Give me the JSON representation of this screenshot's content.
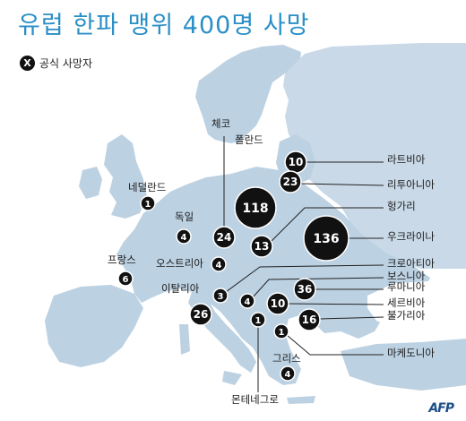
{
  "title": "유럽 한파 맹위 400명 사망",
  "legend": {
    "symbol": "X",
    "label": "공식 사망자"
  },
  "credit": "AFP",
  "colors": {
    "sea": "#ffffff",
    "land": "#bcd1e2",
    "land_light": "#d3e1ec",
    "marker": "#111111",
    "title": "#2a8fc7"
  },
  "countries": [
    {
      "name": "라트비아",
      "deaths": "10"
    },
    {
      "name": "리투아니아",
      "deaths": "23"
    },
    {
      "name": "폴란드",
      "deaths": "118"
    },
    {
      "name": "체코",
      "deaths": "24"
    },
    {
      "name": "네덜란드",
      "deaths": "1"
    },
    {
      "name": "독일",
      "deaths": "4"
    },
    {
      "name": "헝가리",
      "deaths": "13"
    },
    {
      "name": "우크라이나",
      "deaths": "136"
    },
    {
      "name": "프랑스",
      "deaths": "6"
    },
    {
      "name": "오스트리아",
      "deaths": "4"
    },
    {
      "name": "크로아티아",
      "deaths": "3"
    },
    {
      "name": "보스니아",
      "deaths": "4"
    },
    {
      "name": "이탈리아",
      "deaths": "26"
    },
    {
      "name": "루마니아",
      "deaths": "36"
    },
    {
      "name": "세르비아",
      "deaths": "10"
    },
    {
      "name": "불가리아",
      "deaths": "16"
    },
    {
      "name": "마케도니아",
      "deaths": "1"
    },
    {
      "name": "몬테네그로",
      "deaths": "1"
    },
    {
      "name": "그리스",
      "deaths": "4"
    }
  ]
}
